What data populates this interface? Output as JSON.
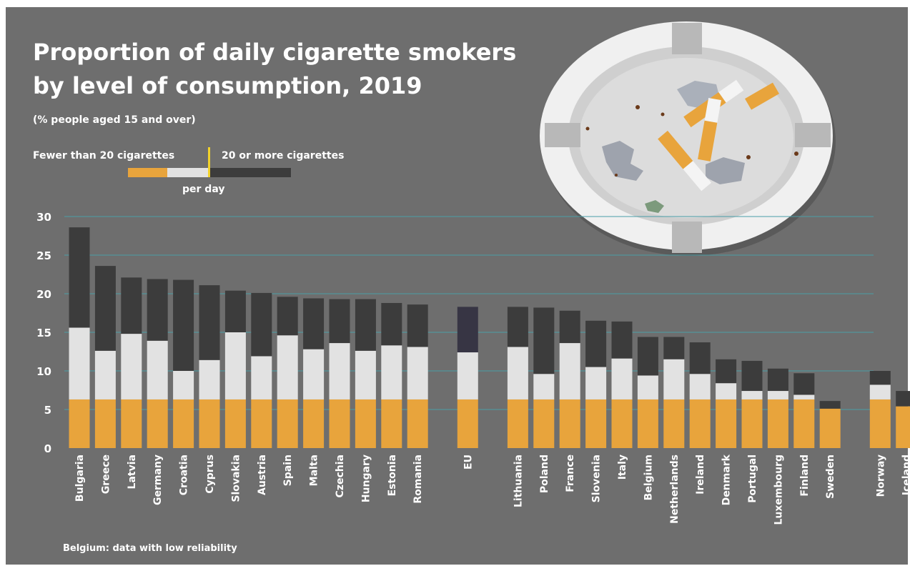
{
  "header": {
    "title_line1": "Proportion of daily cigarette smokers",
    "title_line2": "by level of consumption, 2019",
    "subtitle": "(% people aged 15 and over)"
  },
  "legend": {
    "fewer": "Fewer than 20 cigarettes",
    "more": "20 or more cigarettes",
    "per_day": "per day"
  },
  "footnote": "Belgium: data with low reliability",
  "colors": {
    "background": "#6e6e6e",
    "heavy": "#3c3c3c",
    "eu_heavy": "#373544",
    "light": "#e2e2e2",
    "filter": "#e8a43c",
    "gridline": "#4a9ea7",
    "text": "#ffffff"
  },
  "chart_data": {
    "type": "bar",
    "stacked": true,
    "ylim": [
      0,
      30
    ],
    "yticks": [
      0,
      5,
      10,
      15,
      20,
      25,
      30
    ],
    "grid": true,
    "categories": [
      "Bulgaria",
      "Greece",
      "Latvia",
      "Germany",
      "Croatia",
      "Cyprus",
      "Slovakia",
      "Austria",
      "Spain",
      "Malta",
      "Czechia",
      "Hungary",
      "Estonia",
      "Romania",
      "EU",
      "Lithuania",
      "Poland",
      "France",
      "Slovenia",
      "Italy",
      "Belgium",
      "Netherlands",
      "Ireland",
      "Denmark",
      "Portugal",
      "Luxembourg",
      "Finland",
      "Sweden",
      "Norway",
      "Iceland"
    ],
    "groups": [
      14,
      1,
      13,
      2
    ],
    "series": [
      {
        "name": "Fewer than 20 cigarettes",
        "values": [
          15.6,
          12.6,
          14.8,
          13.9,
          10.0,
          11.4,
          15.0,
          11.9,
          14.6,
          12.8,
          13.6,
          12.6,
          13.3,
          13.1,
          12.4,
          13.1,
          9.6,
          13.6,
          10.5,
          11.6,
          9.4,
          11.5,
          9.6,
          8.4,
          7.4,
          7.4,
          6.9,
          5.1,
          8.2,
          5.4
        ]
      },
      {
        "name": "20 or more cigarettes",
        "values": [
          13.0,
          11.0,
          7.3,
          8.0,
          11.8,
          9.7,
          5.4,
          8.2,
          5.0,
          6.6,
          5.7,
          6.7,
          5.5,
          5.5,
          5.9,
          5.2,
          8.6,
          4.2,
          6.0,
          4.8,
          5.0,
          2.9,
          4.1,
          3.1,
          3.9,
          2.9,
          2.8,
          1.0,
          1.8,
          2.0
        ]
      }
    ]
  }
}
